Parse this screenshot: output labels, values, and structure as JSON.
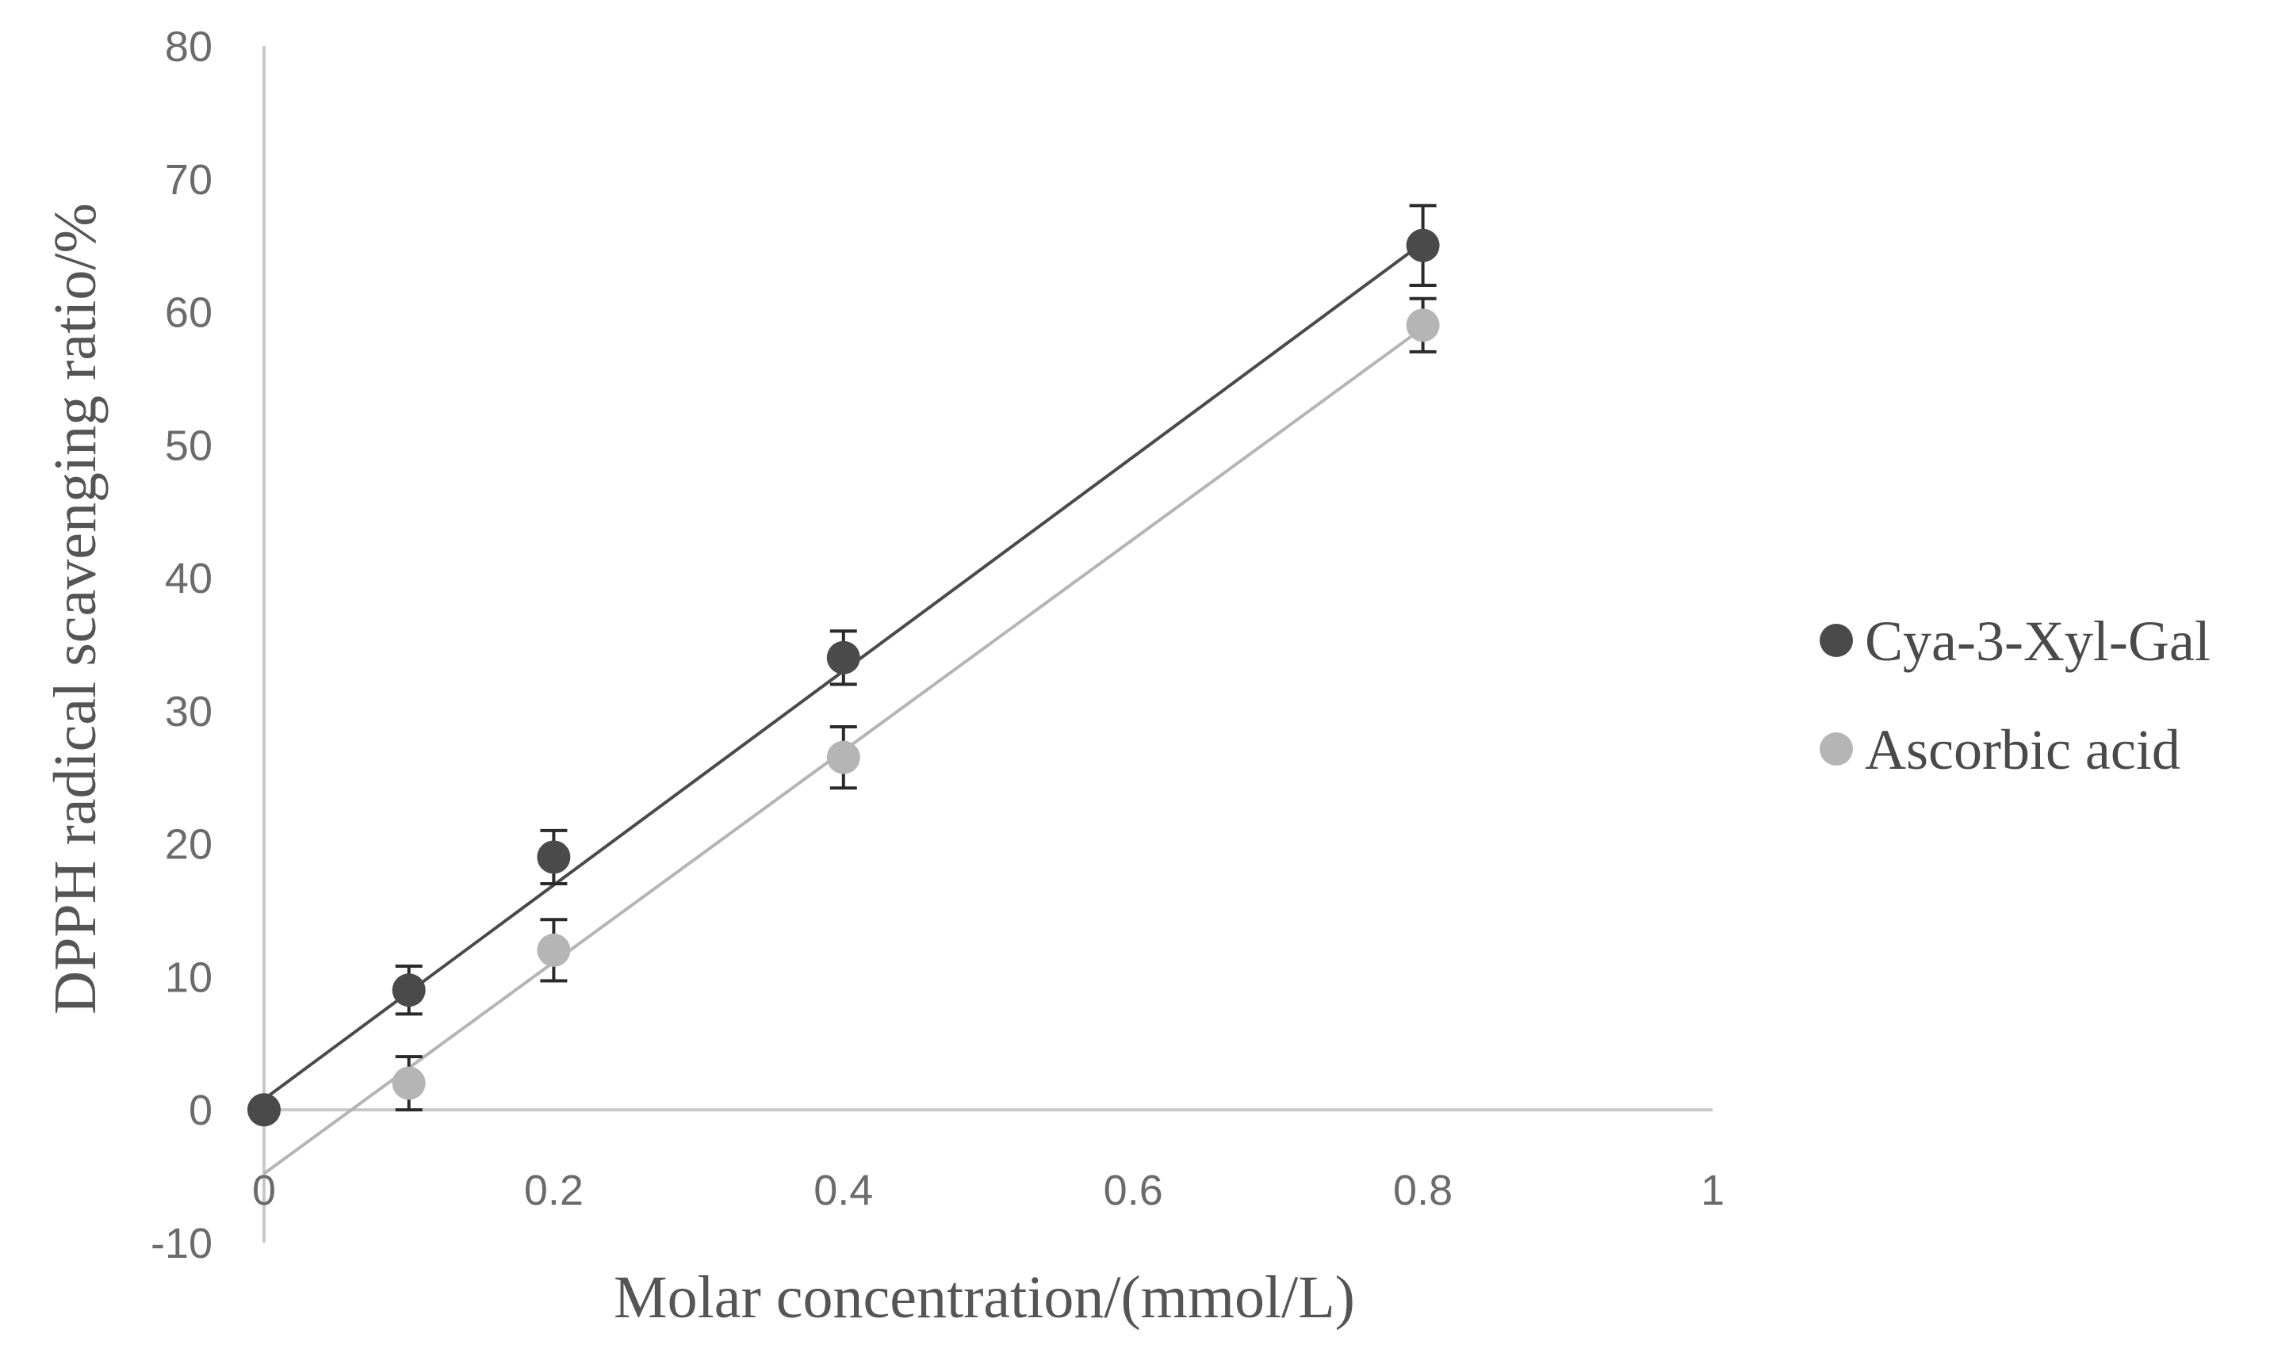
{
  "chart_data": {
    "type": "scatter",
    "title": "",
    "xlabel": "Molar concentration/(mmol/L)",
    "ylabel": "DPPH radical scavenging ratio/%",
    "xlim": [
      0,
      1
    ],
    "ylim": [
      -10,
      80
    ],
    "x_ticks": [
      0,
      0.2,
      0.4,
      0.6,
      0.8,
      1
    ],
    "x_tick_labels": [
      "0",
      "0.2",
      "0.4",
      "0.6",
      "0.8",
      "1"
    ],
    "y_ticks": [
      -10,
      0,
      10,
      20,
      30,
      40,
      50,
      60,
      70,
      80
    ],
    "y_tick_labels": [
      "-10",
      "0",
      "10",
      "20",
      "30",
      "40",
      "50",
      "60",
      "70",
      "80"
    ],
    "grid": false,
    "legend_position": "right",
    "series": [
      {
        "name": "Cya-3-Xyl-Gal",
        "color": "#4a4a4a",
        "x": [
          0,
          0.1,
          0.2,
          0.4,
          0.8
        ],
        "y": [
          0,
          9,
          19,
          34,
          65
        ],
        "error": [
          0,
          1.8,
          2,
          2,
          3
        ],
        "trendline": {
          "slope": 80.5,
          "intercept": 0.8
        }
      },
      {
        "name": "Ascorbic acid",
        "color": "#b5b5b5",
        "x": [
          0.1,
          0.2,
          0.4,
          0.8
        ],
        "y": [
          2,
          12,
          26.5,
          59
        ],
        "error": [
          2,
          2.3,
          2.3,
          2
        ],
        "trendline": {
          "slope": 79.5,
          "intercept": -4.8
        }
      }
    ]
  }
}
